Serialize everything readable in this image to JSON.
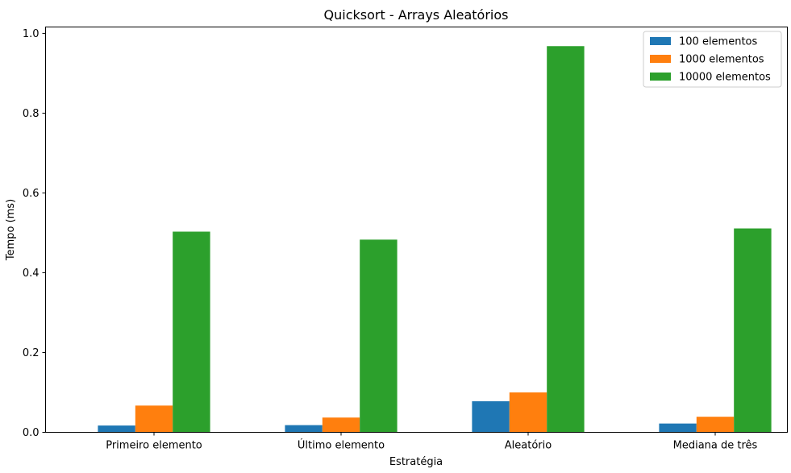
{
  "chart_data": {
    "type": "bar",
    "title": "Quicksort - Arrays Aleatórios",
    "xlabel": "Estratégia",
    "ylabel": "Tempo (ms)",
    "categories": [
      "Primeiro elemento",
      "Último elemento",
      "Aleatório",
      "Mediana de três"
    ],
    "series": [
      {
        "name": "100 elementos",
        "color": "#1f77b4",
        "values": [
          0.017,
          0.018,
          0.078,
          0.022
        ]
      },
      {
        "name": "1000 elementos",
        "color": "#ff7f0e",
        "values": [
          0.067,
          0.037,
          0.1,
          0.039
        ]
      },
      {
        "name": "10000 elementos",
        "color": "#2ca02c",
        "values": [
          0.503,
          0.483,
          0.968,
          0.511
        ]
      }
    ],
    "ylim": [
      0,
      1.016
    ],
    "yticks": [
      "0.0",
      "0.2",
      "0.4",
      "0.6",
      "0.8",
      "1.0"
    ],
    "grid": false,
    "legend_position": "top-right"
  }
}
